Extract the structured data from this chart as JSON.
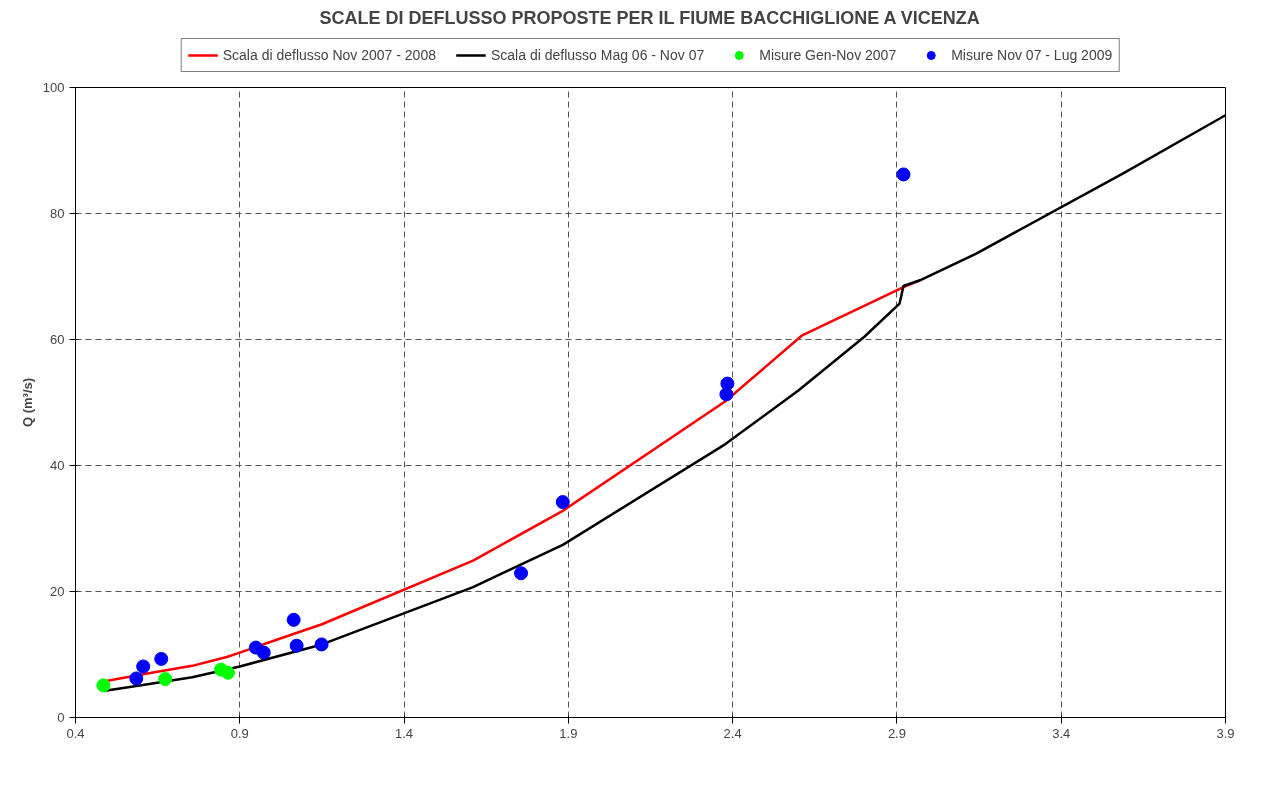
{
  "chart_data": {
    "type": "line",
    "title": "SCALE DI DEFLUSSO PROPOSTE PER IL FIUME BACCHIGLIONE A VICENZA",
    "ylabel": "Q (m³/s)",
    "xlim": [
      0.4,
      3.9
    ],
    "ylim": [
      0,
      100
    ],
    "xticks": [
      0.4,
      0.9,
      1.4,
      1.9,
      2.4,
      2.9,
      3.4,
      3.9
    ],
    "yticks": [
      0,
      20,
      40,
      60,
      80,
      100
    ],
    "grid": true,
    "legend": "top",
    "marker": "none",
    "line_style": "solid",
    "series": [
      {
        "name": "Scala di deflusso Nov 2007 - 2008",
        "color": "#ff0000",
        "x": [
          0.485,
          0.61,
          0.755,
          0.86,
          0.9,
          1.01,
          1.15,
          1.61,
          1.883,
          2.378,
          2.61,
          2.92,
          2.97
        ],
        "values": [
          5.7,
          6.9,
          8.2,
          9.6,
          10.3,
          12.3,
          14.8,
          24.9,
          32.8,
          50.2,
          60.6,
          68.3,
          69.4
        ]
      },
      {
        "name": "Scala di deflusso Mag 06 - Nov 07",
        "color": "#000000",
        "x": [
          0.485,
          0.61,
          0.755,
          0.9,
          1.15,
          1.61,
          1.883,
          2.378,
          2.6,
          2.8,
          2.908,
          2.92,
          2.97,
          3.14,
          3.59,
          3.9
        ],
        "values": [
          4.2,
          5.2,
          6.4,
          8.1,
          11.6,
          20.7,
          27.4,
          43.4,
          51.9,
          60.4,
          65.7,
          68.5,
          69.4,
          73.6,
          86.4,
          95.6
        ]
      },
      {
        "name": "Misure Gen-Nov 2007",
        "type": "scatter",
        "marker": "circle",
        "color": "#00ff00",
        "x": [
          0.485,
          0.673,
          0.843,
          0.864
        ],
        "values": [
          5.1,
          6.1,
          7.6,
          7.1
        ]
      },
      {
        "name": "Misure Nov 07 - Lug 2009",
        "type": "scatter",
        "marker": "circle",
        "color": "#0000ff",
        "x": [
          0.585,
          0.606,
          0.661,
          0.949,
          0.973,
          1.064,
          1.073,
          1.149,
          1.756,
          1.883,
          2.384,
          2.381,
          2.92
        ],
        "values": [
          6.2,
          8.1,
          9.3,
          11.1,
          10.3,
          15.5,
          11.4,
          11.6,
          22.9,
          34.2,
          53.0,
          51.3,
          86.2
        ]
      }
    ]
  }
}
